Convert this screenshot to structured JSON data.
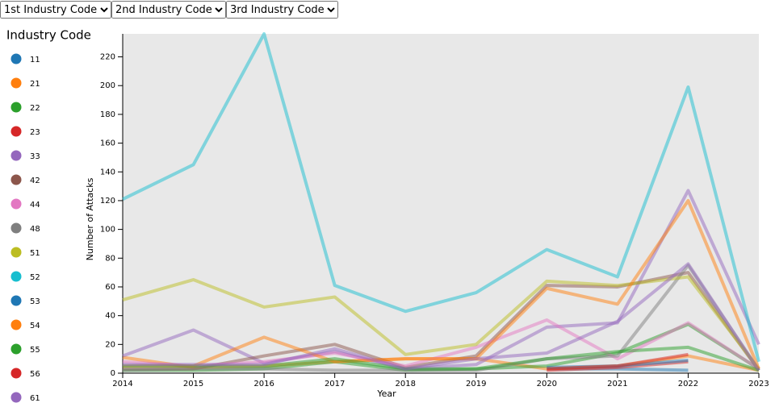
{
  "controls": [
    "1st Industry Code",
    "2nd Industry Code",
    "3rd Industry Code"
  ],
  "chart_data": {
    "type": "line",
    "legend_title": "Industry Code",
    "x_label": "Year",
    "y_label": "Number of Attacks",
    "x": [
      2014,
      2015,
      2016,
      2017,
      2018,
      2019,
      2020,
      2021,
      2022,
      2023
    ],
    "xlim": [
      2014,
      2023
    ],
    "xticks": [
      2014,
      2015,
      2016,
      2017,
      2018,
      2019,
      2020,
      2021,
      2022,
      2023
    ],
    "ylim": [
      0,
      236
    ],
    "yticks": [
      0,
      20,
      40,
      60,
      80,
      100,
      120,
      140,
      160,
      180,
      200,
      220
    ],
    "series": [
      {
        "name": "11",
        "color": "#1f77b4",
        "values": [
          null,
          null,
          null,
          null,
          null,
          null,
          3,
          3,
          2,
          null
        ]
      },
      {
        "name": "21",
        "color": "#ff7f0e",
        "values": [
          11,
          4,
          5,
          8,
          10,
          10,
          3,
          5,
          12,
          2
        ]
      },
      {
        "name": "22",
        "color": "#2ca02c",
        "values": [
          2,
          2,
          3,
          8,
          2,
          3,
          5,
          14,
          34,
          3
        ]
      },
      {
        "name": "23",
        "color": "#d62728",
        "values": [
          null,
          null,
          null,
          null,
          null,
          null,
          2,
          4,
          8,
          null
        ]
      },
      {
        "name": "33",
        "color": "#9467bd",
        "values": [
          12,
          30,
          7,
          15,
          3,
          6,
          32,
          35,
          127,
          20
        ]
      },
      {
        "name": "42",
        "color": "#8c564b",
        "values": [
          3,
          3,
          12,
          20,
          4,
          12,
          61,
          60,
          70,
          2
        ]
      },
      {
        "name": "44",
        "color": "#e377c2",
        "values": [
          8,
          5,
          8,
          14,
          5,
          18,
          37,
          10,
          35,
          3
        ]
      },
      {
        "name": "48",
        "color": "#7f7f7f",
        "values": [
          2,
          3,
          3,
          2,
          2,
          2,
          10,
          12,
          75,
          2
        ]
      },
      {
        "name": "51",
        "color": "#bcbd22",
        "values": [
          51,
          65,
          46,
          53,
          13,
          20,
          64,
          61,
          67,
          3
        ]
      },
      {
        "name": "52",
        "color": "#17becf",
        "values": [
          121,
          145,
          236,
          61,
          43,
          56,
          86,
          67,
          199,
          8
        ]
      },
      {
        "name": "53",
        "color": "#1f77b4",
        "values": [
          null,
          null,
          null,
          null,
          null,
          null,
          4,
          5,
          9,
          null
        ]
      },
      {
        "name": "54",
        "color": "#ff7f0e",
        "values": [
          5,
          5,
          25,
          8,
          10,
          10,
          59,
          48,
          120,
          3
        ]
      },
      {
        "name": "55",
        "color": "#2ca02c",
        "values": [
          5,
          5,
          5,
          10,
          3,
          3,
          10,
          15,
          18,
          2
        ]
      },
      {
        "name": "56",
        "color": "#d62728",
        "values": [
          null,
          null,
          null,
          null,
          null,
          null,
          3,
          5,
          13,
          null
        ]
      },
      {
        "name": "61",
        "color": "#9467bd",
        "values": [
          6,
          6,
          6,
          17,
          3,
          10,
          14,
          36,
          76,
          2
        ]
      }
    ]
  }
}
